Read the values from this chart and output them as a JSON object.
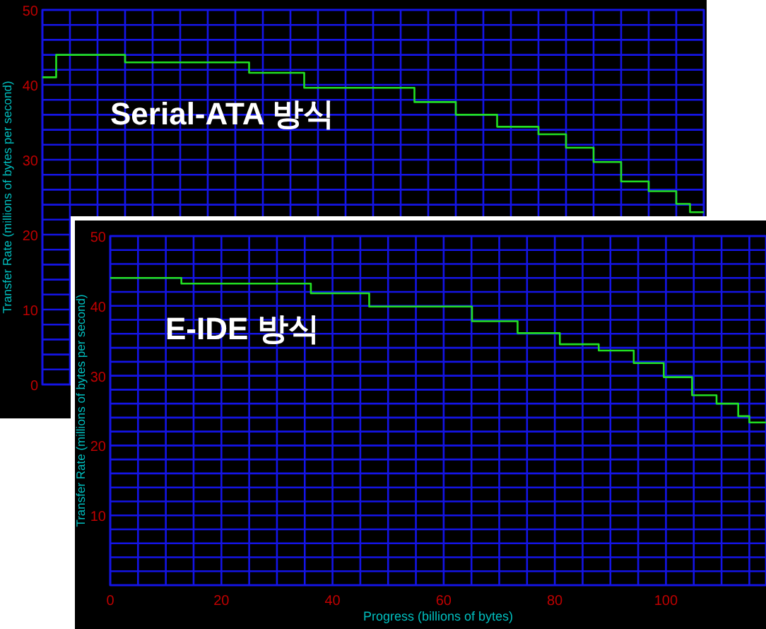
{
  "chart_data": [
    {
      "type": "step",
      "ylabel": "Transfer Rate (millions of bytes per second)",
      "annotations": [
        "Serial-ATA 방식"
      ],
      "grid": true,
      "tick_labels": "y",
      "ylim": [
        0,
        50
      ],
      "yticks": [
        0,
        {
          "value": 2,
          "label": null
        },
        {
          "value": 4,
          "label": null
        },
        {
          "value": 6,
          "label": null
        },
        {
          "value": 8,
          "label": null
        },
        10,
        {
          "value": 12,
          "label": null
        },
        {
          "value": 14,
          "label": null
        },
        {
          "value": 16,
          "label": null
        },
        {
          "value": 18,
          "label": null
        },
        20,
        {
          "value": 22,
          "label": null
        },
        {
          "value": 24,
          "label": null
        },
        {
          "value": 26,
          "label": null
        },
        {
          "value": 28,
          "label": null
        },
        30,
        {
          "value": 32,
          "label": null
        },
        {
          "value": 34,
          "label": null
        },
        {
          "value": 36,
          "label": null
        },
        {
          "value": 38,
          "label": null
        },
        40,
        {
          "value": 42,
          "label": null
        },
        {
          "value": 44,
          "label": null
        },
        {
          "value": 46,
          "label": null
        },
        {
          "value": 48,
          "label": null
        },
        50
      ],
      "categories": [
        null,
        null,
        null,
        null,
        null,
        null,
        null,
        null,
        null,
        null,
        null,
        null,
        null,
        null,
        null,
        null,
        null,
        null,
        null,
        null,
        null,
        null,
        null,
        null,
        null,
        null,
        null,
        null,
        null,
        null,
        null,
        null,
        null,
        null,
        null,
        null,
        null,
        null,
        null,
        null,
        null,
        null,
        null,
        null,
        null,
        null,
        null,
        null,
        null
      ],
      "series": [
        {
          "color": "#22e022",
          "values": [
            41,
            44,
            44,
            44,
            44,
            44,
            43,
            43,
            43,
            43,
            43,
            43,
            43,
            43,
            43,
            41.6,
            41.6,
            41.6,
            41.6,
            39.6,
            39.6,
            39.6,
            39.6,
            39.6,
            39.6,
            39.6,
            39.6,
            37.7,
            37.7,
            37.7,
            36,
            36,
            36,
            34.4,
            34.4,
            34.4,
            33.4,
            33.4,
            31.6,
            31.6,
            29.7,
            29.7,
            27.1,
            27.1,
            25.8,
            25.8,
            24.1,
            23,
            23
          ]
        }
      ]
    },
    {
      "type": "step",
      "xlabel": "Progress (billions of bytes)",
      "ylabel": "Transfer Rate (millions of bytes per second)",
      "annotations": [
        "E-IDE 방식"
      ],
      "grid": true,
      "xlim": [
        0,
        118
      ],
      "ylim": [
        0,
        50
      ],
      "xticks": [
        0,
        {
          "value": 5,
          "label": null
        },
        {
          "value": 10,
          "label": null
        },
        {
          "value": 15,
          "label": null
        },
        20,
        {
          "value": 25,
          "label": null
        },
        {
          "value": 30,
          "label": null
        },
        {
          "value": 35,
          "label": null
        },
        40,
        {
          "value": 45,
          "label": null
        },
        {
          "value": 50,
          "label": null
        },
        {
          "value": 55,
          "label": null
        },
        60,
        {
          "value": 65,
          "label": null
        },
        {
          "value": 70,
          "label": null
        },
        {
          "value": 75,
          "label": null
        },
        80,
        {
          "value": 85,
          "label": null
        },
        {
          "value": 90,
          "label": null
        },
        {
          "value": 95,
          "label": null
        },
        100,
        {
          "value": 105,
          "label": null
        },
        {
          "value": 110,
          "label": null
        },
        {
          "value": 115,
          "label": null
        }
      ],
      "yticks": [
        {
          "value": 0,
          "label": null
        },
        {
          "value": 2,
          "label": null
        },
        {
          "value": 4,
          "label": null
        },
        {
          "value": 6,
          "label": null
        },
        {
          "value": 8,
          "label": null
        },
        10,
        {
          "value": 12,
          "label": null
        },
        {
          "value": 14,
          "label": null
        },
        {
          "value": 16,
          "label": null
        },
        {
          "value": 18,
          "label": null
        },
        20,
        {
          "value": 22,
          "label": null
        },
        {
          "value": 24,
          "label": null
        },
        {
          "value": 26,
          "label": null
        },
        {
          "value": 28,
          "label": null
        },
        30,
        {
          "value": 32,
          "label": null
        },
        {
          "value": 34,
          "label": null
        },
        {
          "value": 36,
          "label": null
        },
        {
          "value": 38,
          "label": null
        },
        40,
        {
          "value": 42,
          "label": null
        },
        {
          "value": 44,
          "label": null
        },
        {
          "value": 46,
          "label": null
        },
        {
          "value": 48,
          "label": null
        },
        50
      ],
      "x": [
        0,
        12.8,
        36.1,
        46.6,
        65.1,
        73.3,
        80.9,
        87.9,
        94.2,
        99.6,
        104.7,
        109.1,
        113,
        115,
        118
      ],
      "series": [
        {
          "color": "#22e022",
          "values": [
            44,
            43.2,
            41.8,
            39.9,
            37.8,
            36.1,
            34.5,
            33.6,
            31.8,
            29.8,
            27.2,
            26,
            24.2,
            23.3,
            23.3
          ]
        }
      ]
    }
  ]
}
